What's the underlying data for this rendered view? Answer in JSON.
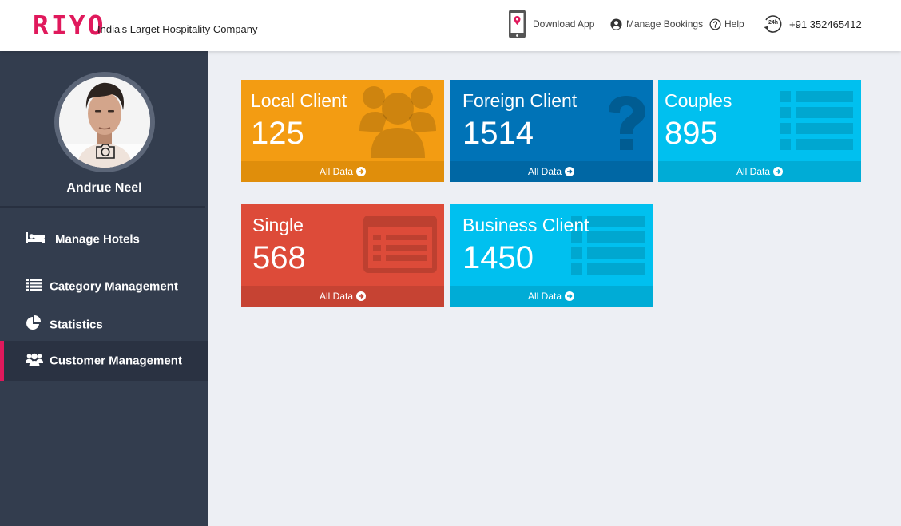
{
  "brand": {
    "logo": "RIYO",
    "tagline": "India's Larget Hospitality Company",
    "accent": "#e0195c"
  },
  "header": {
    "download_app": "Download App",
    "manage_bookings": "Manage Bookings",
    "help": "Help",
    "support_badge": "24h",
    "phone": "+91 352465412"
  },
  "sidebar": {
    "user_name": "Andrue Neel",
    "items": [
      {
        "label": "Manage Hotels",
        "icon": "bed-icon",
        "active": false
      },
      {
        "label": "Category Management",
        "icon": "list-icon",
        "active": false
      },
      {
        "label": "Statistics",
        "icon": "pie-chart-icon",
        "active": false
      },
      {
        "label": "Customer Management",
        "icon": "users-icon",
        "active": true
      }
    ]
  },
  "cards": [
    {
      "title": "Local Client",
      "value": "125",
      "footer": "All Data",
      "color": "#f39c12",
      "footer_color": "#e08e0b",
      "icon": "users-icon"
    },
    {
      "title": "Foreign Client",
      "value": "1514",
      "footer": "All Data",
      "color": "#0073b7",
      "footer_color": "#0067a4",
      "icon": "question-icon"
    },
    {
      "title": "Couples",
      "value": "895",
      "footer": "All Data",
      "color": "#00c0ef",
      "footer_color": "#00acd6",
      "icon": "list-icon"
    },
    {
      "title": "Single",
      "value": "568",
      "footer": "All Data",
      "color": "#dd4b39",
      "footer_color": "#c64333",
      "icon": "id-card-icon"
    },
    {
      "title": "Business Client",
      "value": "1450",
      "footer": "All Data",
      "color": "#00c0ef",
      "footer_color": "#00acd6",
      "icon": "list-icon"
    }
  ]
}
